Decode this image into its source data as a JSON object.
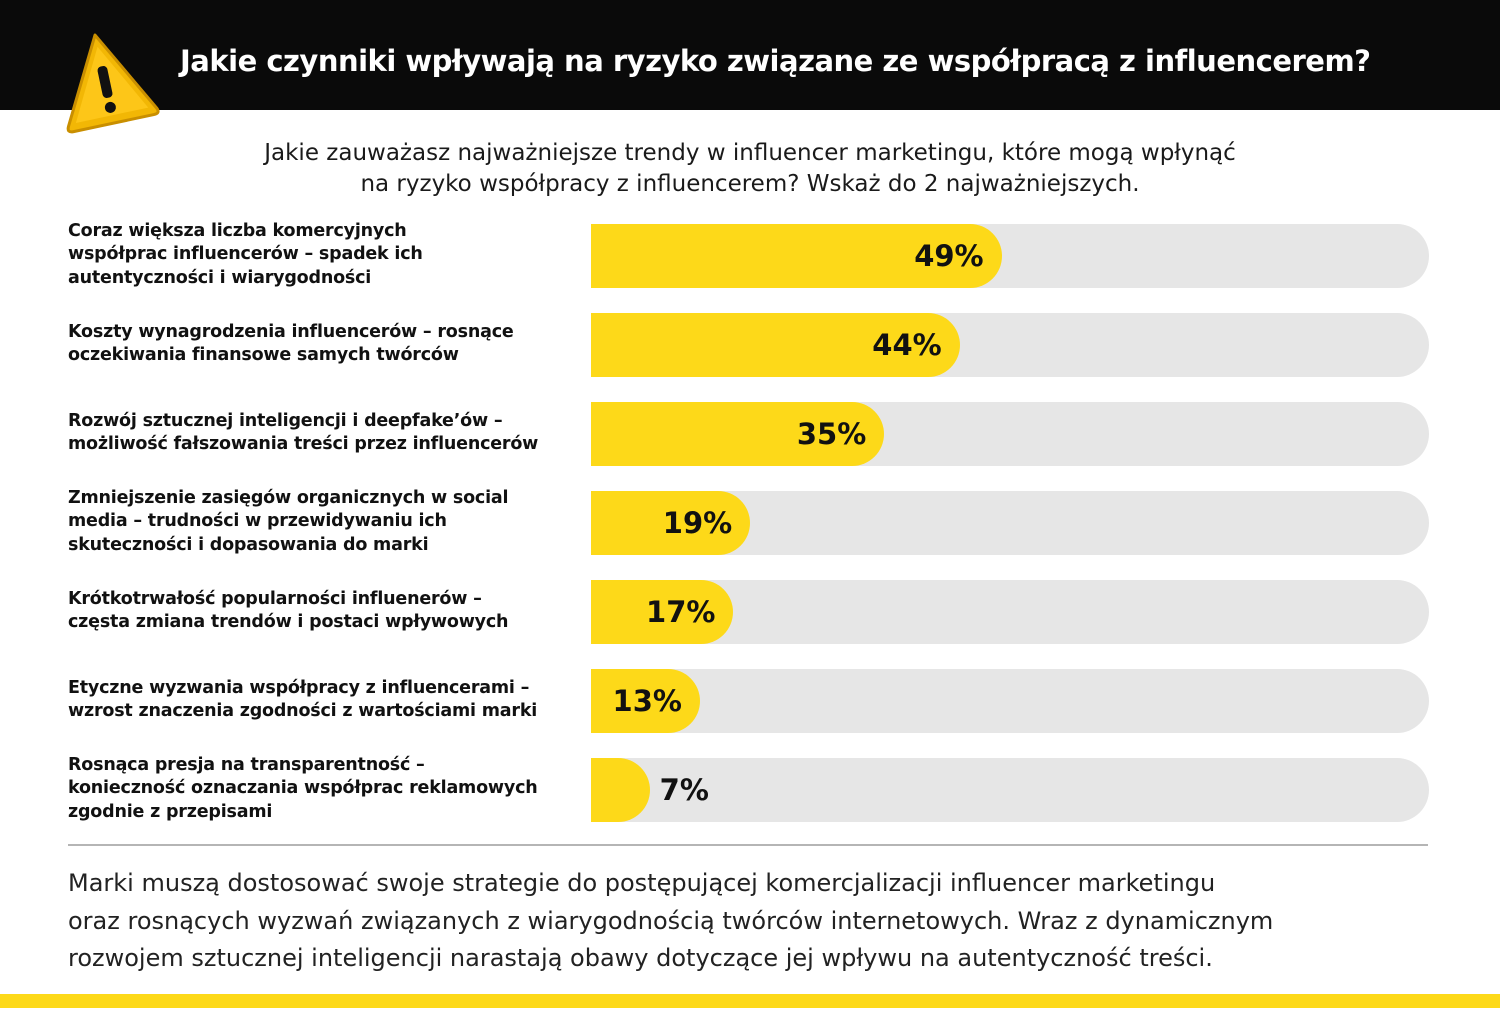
{
  "header": {
    "title": "Jakie czynniki wpływają na ryzyko związane ze współpracą z influencerem?",
    "icon": "warning-icon",
    "background": "#0a0a0a"
  },
  "question": {
    "line1": "Jakie zauważasz najważniejsze trendy w influencer marketingu, które mogą wpłynąć",
    "line2": "na ryzyko współpracy z influencerem? Wskaż do 2 najważniejszych."
  },
  "chart_data": {
    "type": "bar",
    "orientation": "horizontal",
    "categories": [
      "Coraz większa liczba komercyjnych współprac influencerów – spadek ich autentyczności i wiarygodności",
      "Koszty wynagrodzenia influencerów – rosnące oczekiwania finansowe samych twórców",
      "Rozwój sztucznej inteligencji i deepfake’ów – możliwość fałszowania treści przez influencerów",
      "Zmniejszenie zasięgów organicznych w social media – trudności w przewidywaniu ich skuteczności i dopasowania do marki",
      "Krótkotrwałość popularności influenerów – częsta zmiana trendów i postaci wpływowych",
      "Etyczne wyzwania współpracy z influencerami – wzrost znaczenia zgodności z wartościami marki",
      "Rosnąca presja na transparentność – konieczność oznaczania współprac reklamowych zgodnie z przepisami"
    ],
    "label_lines": [
      [
        "Coraz większa liczba komercyjnych",
        "współprac influencerów – spadek ich",
        "autentyczności i wiarygodności"
      ],
      [
        "Koszty wynagrodzenia influencerów – rosnące",
        "oczekiwania finansowe samych twórców"
      ],
      [
        "Rozwój sztucznej inteligencji i deepfake’ów –",
        "możliwość fałszowania treści przez influencerów"
      ],
      [
        "Zmniejszenie zasięgów organicznych w social",
        "media – trudności w przewidywaniu ich",
        "skuteczności i dopasowania do marki"
      ],
      [
        "Krótkotrwałość popularności influenerów –",
        "częsta zmiana trendów i postaci wpływowych"
      ],
      [
        "Etyczne wyzwania współpracy z influencerami –",
        "wzrost znaczenia zgodności z wartościami marki"
      ],
      [
        "Rosnąca presja na transparentność –",
        "konieczność oznaczania współprac reklamowych",
        "zgodnie z przepisami"
      ]
    ],
    "values": [
      49,
      44,
      35,
      19,
      17,
      13,
      7
    ],
    "value_labels": [
      "49%",
      "44%",
      "35%",
      "19%",
      "17%",
      "13%",
      "7%"
    ],
    "xlim": [
      0,
      100
    ],
    "unit": "%",
    "bar_color": "#fdd919",
    "track_color": "#e6e6e6",
    "grid": false,
    "title": "",
    "xlabel": "",
    "ylabel": ""
  },
  "footer": {
    "lines": [
      "Marki muszą dostosować swoje strategie do postępującej komercjalizacji influencer marketingu",
      "oraz rosnących wyzwań związanych z wiarygodnością twórców internetowych. Wraz z dynamicznym",
      "rozwojem sztucznej inteligencji narastają obawy dotyczące jej wpływu na autentyczność treści."
    ]
  },
  "colors": {
    "accent": "#fdd919",
    "header_bg": "#0a0a0a",
    "divider": "#b5b5b5"
  }
}
